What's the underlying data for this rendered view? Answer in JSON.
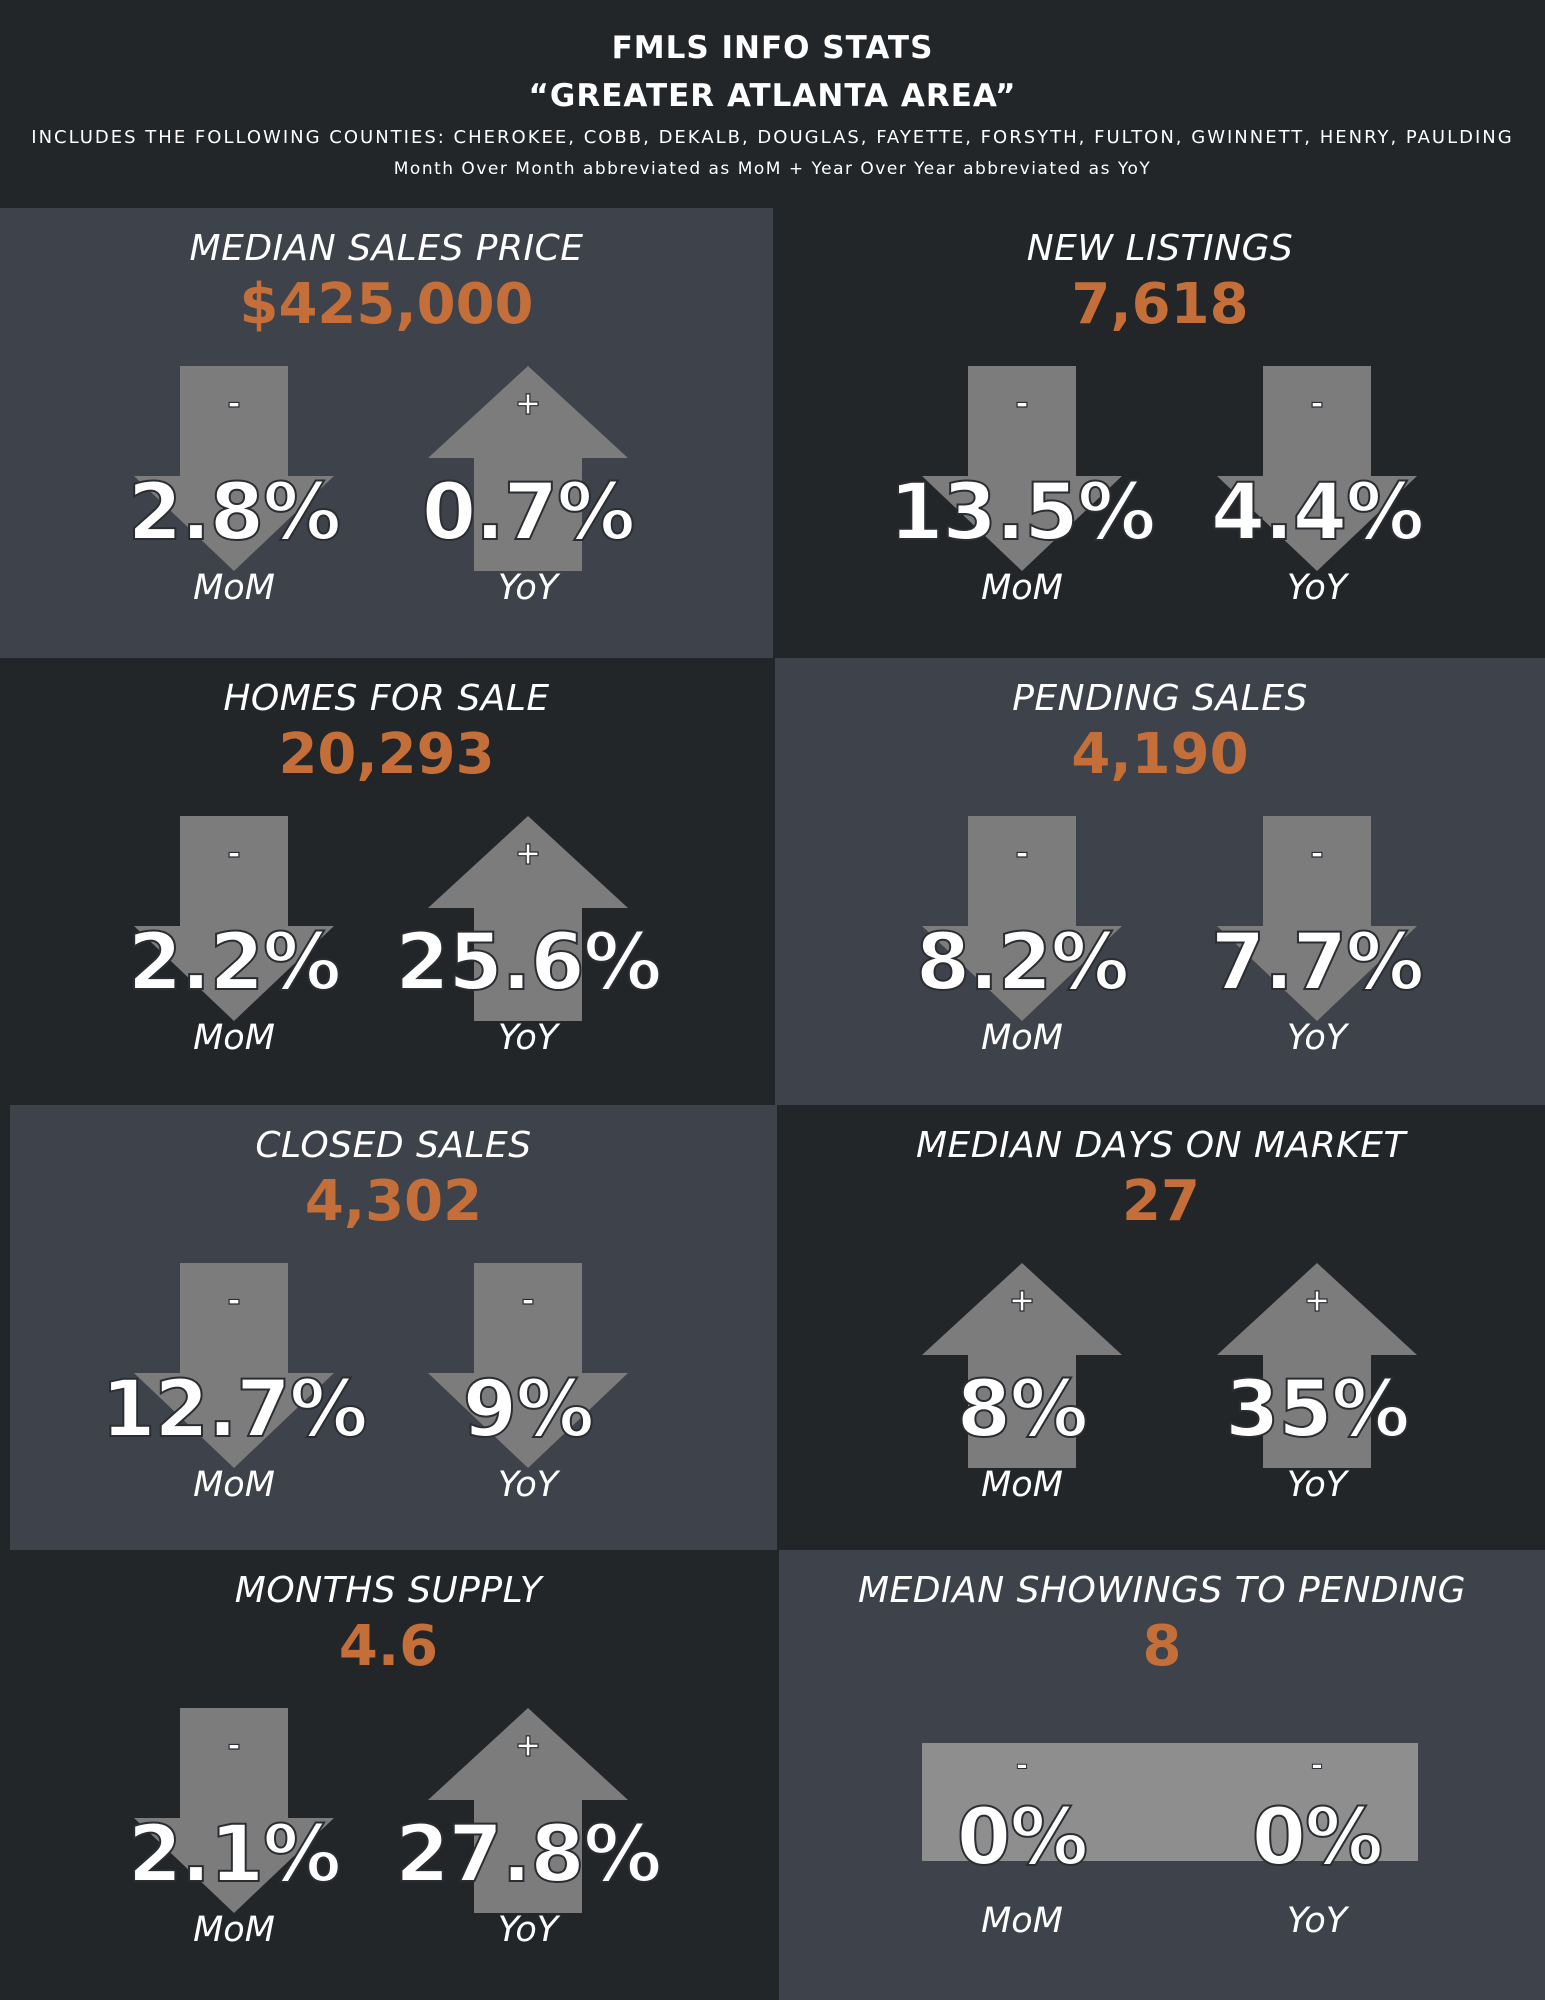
{
  "header": {
    "title_line1": "FMLS INFO STATS",
    "title_line2": "“GREATER ATLANTA AREA”",
    "counties": "INCLUDES THE FOLLOWING COUNTIES: CHEROKEE, COBB, DEKALB, DOUGLAS, FAYETTE, FORSYTH, FULTON, GWINNETT, HENRY, PAULDING",
    "note": "Month Over Month abbreviated as MoM + Year Over Year abbreviated as YoY"
  },
  "colors": {
    "value_accent": "#c46f3a",
    "panel_light": "#3e434b",
    "panel_dark": "#232629",
    "arrow_dark": "#7c7c7c",
    "arrow_light": "#959595"
  },
  "panels": [
    {
      "title": "MEDIAN SALES PRICE",
      "value": "$425,000",
      "mom": {
        "sign": "-",
        "pct": "2.8%",
        "label": "MoM",
        "direction": "down"
      },
      "yoy": {
        "sign": "+",
        "pct": "0.7%",
        "label": "YoY",
        "direction": "up"
      }
    },
    {
      "title": "NEW LISTINGS",
      "value": "7,618",
      "mom": {
        "sign": "-",
        "pct": "13.5%",
        "label": "MoM",
        "direction": "down"
      },
      "yoy": {
        "sign": "-",
        "pct": "4.4%",
        "label": "YoY",
        "direction": "down"
      }
    },
    {
      "title": "HOMES FOR SALE",
      "value": "20,293",
      "mom": {
        "sign": "-",
        "pct": "2.2%",
        "label": "MoM",
        "direction": "down"
      },
      "yoy": {
        "sign": "+",
        "pct": "25.6%",
        "label": "YoY",
        "direction": "up"
      }
    },
    {
      "title": "PENDING SALES",
      "value": "4,190",
      "mom": {
        "sign": "-",
        "pct": "8.2%",
        "label": "MoM",
        "direction": "down"
      },
      "yoy": {
        "sign": "-",
        "pct": "7.7%",
        "label": "YoY",
        "direction": "down"
      }
    },
    {
      "title": "CLOSED SALES",
      "value": "4,302",
      "mom": {
        "sign": "-",
        "pct": "12.7%",
        "label": "MoM",
        "direction": "down"
      },
      "yoy": {
        "sign": "-",
        "pct": "9%",
        "label": "YoY",
        "direction": "down"
      }
    },
    {
      "title": "MEDIAN DAYS ON MARKET",
      "value": "27",
      "mom": {
        "sign": "+",
        "pct": "8%",
        "label": "MoM",
        "direction": "up"
      },
      "yoy": {
        "sign": "+",
        "pct": "35%",
        "label": "YoY",
        "direction": "up"
      }
    },
    {
      "title": "MONTHS SUPPLY",
      "value": "4.6",
      "mom": {
        "sign": "-",
        "pct": "2.1%",
        "label": "MoM",
        "direction": "down"
      },
      "yoy": {
        "sign": "+",
        "pct": "27.8%",
        "label": "YoY",
        "direction": "up"
      }
    },
    {
      "title": "MEDIAN SHOWINGS TO PENDING",
      "value": "8",
      "mom": {
        "sign": "-",
        "pct": "0%",
        "label": "MoM",
        "direction": "flat"
      },
      "yoy": {
        "sign": "-",
        "pct": "0%",
        "label": "YoY",
        "direction": "flat"
      }
    }
  ]
}
